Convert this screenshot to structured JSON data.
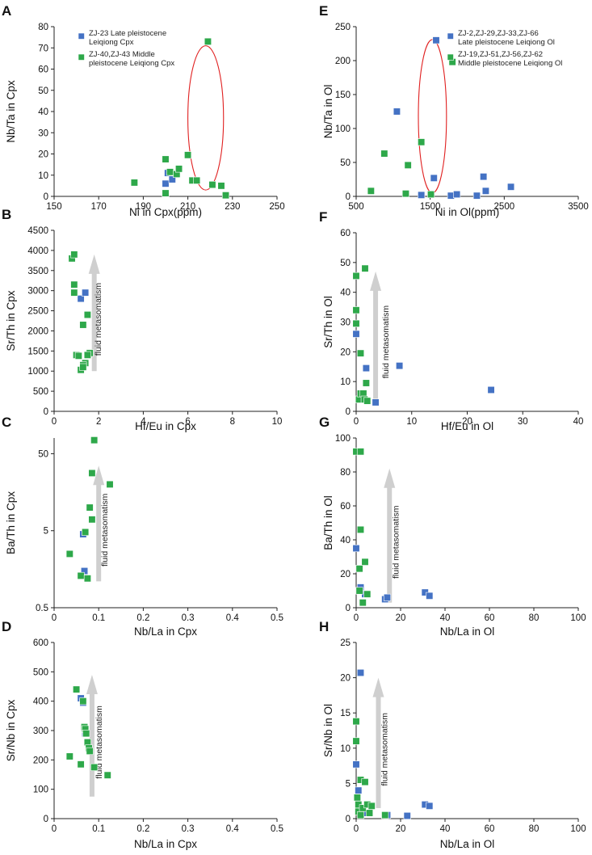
{
  "colors": {
    "late": "#4472C4",
    "middle": "#2EA84A",
    "point_stroke": "#ffffff",
    "ellipse": "#E02020",
    "arrow": "#CFCFCF",
    "axis": "#222222"
  },
  "chart_data": [
    {
      "id": "A",
      "letter": "A",
      "type": "scatter",
      "xlabel": "Ni in Cpx(ppm)",
      "ylabel": "Nb/Ta in Cpx",
      "xlim": [
        150,
        250
      ],
      "ylim": [
        0,
        80
      ],
      "yscale": "linear",
      "xticks": [
        150,
        170,
        190,
        210,
        230,
        250
      ],
      "yticks": [
        0,
        10,
        20,
        30,
        40,
        50,
        60,
        70,
        80
      ],
      "legend": [
        {
          "series": "late",
          "lines": [
            "ZJ-23 Late pleistocene",
            "Leiqiong Cpx"
          ]
        },
        {
          "series": "middle",
          "lines": [
            "ZJ-40,ZJ-43 Middle",
            "pleistocene Leiqiong Cpx"
          ]
        }
      ],
      "ellipse": {
        "cx": 218,
        "cy": 37,
        "rx": 8,
        "ry": 34
      },
      "series": [
        {
          "name": "late",
          "points": [
            [
              200,
              6
            ],
            [
              201,
              11
            ],
            [
              203,
              8
            ]
          ]
        },
        {
          "name": "middle",
          "points": [
            [
              186,
              6.5
            ],
            [
              200,
              17.5
            ],
            [
              200,
              1.5
            ],
            [
              202,
              11.5
            ],
            [
              205,
              10.5
            ],
            [
              206,
              13
            ],
            [
              210,
              19.5
            ],
            [
              212,
              7.5
            ],
            [
              214,
              7.5
            ],
            [
              219,
              73
            ],
            [
              221,
              5.5
            ],
            [
              225,
              5
            ],
            [
              227,
              0.5
            ]
          ]
        }
      ]
    },
    {
      "id": "E",
      "letter": "E",
      "type": "scatter",
      "xlabel": "Ni in Ol(ppm)",
      "ylabel": "Nb/Ta in Ol",
      "xlim": [
        500,
        3500
      ],
      "ylim": [
        0,
        250
      ],
      "yscale": "linear",
      "xticks": [
        500,
        1500,
        2500,
        3500
      ],
      "yticks": [
        0,
        50,
        100,
        150,
        200,
        250
      ],
      "legend": [
        {
          "series": "late",
          "lines": [
            "ZJ-2,ZJ-29,ZJ-33,ZJ-66",
            "Late pleistocene Leiqiong Ol"
          ]
        },
        {
          "series": "middle",
          "lines": [
            "ZJ-19,ZJ-51,ZJ-56,ZJ-62",
            "Middle pleistocene Leiqiong Ol"
          ]
        }
      ],
      "ellipse": {
        "cx": 1530,
        "cy": 118,
        "rx": 190,
        "ry": 113
      },
      "series": [
        {
          "name": "late",
          "points": [
            [
              1050,
              125
            ],
            [
              1380,
              2
            ],
            [
              1550,
              27
            ],
            [
              1580,
              230
            ],
            [
              1780,
              1
            ],
            [
              1860,
              3
            ],
            [
              2130,
              1
            ],
            [
              2220,
              29
            ],
            [
              2250,
              8
            ],
            [
              2590,
              14
            ]
          ]
        },
        {
          "name": "middle",
          "points": [
            [
              700,
              8
            ],
            [
              880,
              63
            ],
            [
              1170,
              4
            ],
            [
              1200,
              46
            ],
            [
              1380,
              80
            ],
            [
              1510,
              3
            ],
            [
              1800,
              198
            ]
          ]
        }
      ]
    },
    {
      "id": "B",
      "letter": "B",
      "type": "scatter",
      "xlabel": "Hf/Eu in Cpx",
      "ylabel": "Sr/Th in Cpx",
      "xlim": [
        0,
        10
      ],
      "ylim": [
        0,
        4500
      ],
      "yscale": "linear",
      "xticks": [
        0,
        2,
        4,
        6,
        8,
        10
      ],
      "yticks": [
        0,
        500,
        1000,
        1500,
        2000,
        2500,
        3000,
        3500,
        4000,
        4500
      ],
      "annotation": {
        "text": "fluid metasomatism",
        "x": 1.8,
        "y_from": 1000,
        "y_to": 3900,
        "label_x": 2.1
      },
      "series": [
        {
          "name": "late",
          "points": [
            [
              1.2,
              2800
            ],
            [
              1.4,
              2950
            ]
          ]
        },
        {
          "name": "middle",
          "points": [
            [
              0.8,
              3800
            ],
            [
              0.9,
              3900
            ],
            [
              0.9,
              3150
            ],
            [
              0.9,
              2950
            ],
            [
              1.3,
              2150
            ],
            [
              1.5,
              2400
            ],
            [
              1.0,
              1400
            ],
            [
              1.1,
              1380
            ],
            [
              1.6,
              1450
            ],
            [
              1.5,
              1400
            ],
            [
              1.4,
              1200
            ],
            [
              1.3,
              1150
            ],
            [
              1.2,
              1030
            ],
            [
              1.3,
              1100
            ]
          ]
        }
      ]
    },
    {
      "id": "F",
      "letter": "F",
      "type": "scatter",
      "xlabel": "Hf/Eu in Ol",
      "ylabel": "Sr/Th in Ol",
      "xlim": [
        0,
        40
      ],
      "ylim": [
        0,
        60
      ],
      "yscale": "linear",
      "xticks": [
        0,
        10,
        20,
        30,
        40
      ],
      "yticks": [
        0,
        10,
        20,
        30,
        40,
        50,
        60
      ],
      "annotation": {
        "text": "fluid metasomatism",
        "x": 3.5,
        "y_from": 4,
        "y_to": 47,
        "label_x": 5.8
      },
      "series": [
        {
          "name": "late",
          "points": [
            [
              0,
              26
            ],
            [
              1.8,
              14.5
            ],
            [
              3.5,
              3
            ],
            [
              7.8,
              15.3
            ],
            [
              24.3,
              7.2
            ]
          ]
        },
        {
          "name": "middle",
          "points": [
            [
              0,
              45.5
            ],
            [
              0,
              34
            ],
            [
              0,
              29.5
            ],
            [
              0.5,
              4
            ],
            [
              0.8,
              6
            ],
            [
              0.8,
              19.5
            ],
            [
              1.3,
              6
            ],
            [
              1.5,
              4
            ],
            [
              1.8,
              9.5
            ],
            [
              1.6,
              48
            ],
            [
              2.0,
              3.5
            ]
          ]
        }
      ]
    },
    {
      "id": "C",
      "letter": "C",
      "type": "scatter",
      "xlabel": "Nb/La in Cpx",
      "ylabel": "Ba/Th in Cpx",
      "xlim": [
        0,
        0.5
      ],
      "ylim": [
        0.5,
        80
      ],
      "yscale": "log",
      "xticks": [
        0,
        0.1,
        0.2,
        0.3,
        0.4,
        0.5
      ],
      "yticks": [
        0.5,
        5,
        50
      ],
      "annotation": {
        "text": "fluid metasomatism",
        "x": 0.1,
        "y_from": 1.1,
        "y_to": 35,
        "label_x": 0.12
      },
      "series": [
        {
          "name": "late",
          "points": [
            [
              0.065,
              4.5
            ],
            [
              0.068,
              1.5
            ]
          ]
        },
        {
          "name": "middle",
          "points": [
            [
              0.035,
              2.5
            ],
            [
              0.06,
              1.3
            ],
            [
              0.07,
              4.8
            ],
            [
              0.075,
              1.2
            ],
            [
              0.08,
              10
            ],
            [
              0.085,
              28
            ],
            [
              0.085,
              7
            ],
            [
              0.09,
              75
            ],
            [
              0.125,
              20
            ]
          ]
        }
      ]
    },
    {
      "id": "G",
      "letter": "G",
      "type": "scatter",
      "xlabel": "Nb/La in Ol",
      "ylabel": "Ba/Th in Ol",
      "xlim": [
        0,
        100
      ],
      "ylim": [
        0,
        100
      ],
      "yscale": "linear",
      "xticks": [
        0,
        20,
        40,
        60,
        80,
        100
      ],
      "yticks": [
        0,
        20,
        40,
        60,
        80,
        100
      ],
      "annotation": {
        "text": "fluid metasomatism",
        "x": 15,
        "y_from": 3,
        "y_to": 82,
        "label_x": 19
      },
      "series": [
        {
          "name": "late",
          "points": [
            [
              0,
              35
            ],
            [
              2,
              12
            ],
            [
              4,
              8
            ],
            [
              13,
              5
            ],
            [
              14,
              6
            ],
            [
              31,
              9
            ],
            [
              33,
              7
            ]
          ]
        },
        {
          "name": "middle",
          "points": [
            [
              0,
              92
            ],
            [
              2,
              92
            ],
            [
              2,
              46
            ],
            [
              1.5,
              23
            ],
            [
              1.5,
              10
            ],
            [
              3,
              3
            ],
            [
              4,
              27
            ],
            [
              5,
              8
            ]
          ]
        }
      ]
    },
    {
      "id": "D",
      "letter": "D",
      "type": "scatter",
      "xlabel": "Nb/La in Cpx",
      "ylabel": "Sr/Nb in Cpx",
      "xlim": [
        0,
        0.5
      ],
      "ylim": [
        0,
        600
      ],
      "yscale": "linear",
      "xticks": [
        0,
        0.1,
        0.2,
        0.3,
        0.4,
        0.5
      ],
      "yticks": [
        0,
        100,
        200,
        300,
        400,
        500,
        600
      ],
      "annotation": {
        "text": "fluid metasomatism",
        "x": 0.085,
        "y_from": 75,
        "y_to": 490,
        "label_x": 0.107
      },
      "series": [
        {
          "name": "late",
          "points": [
            [
              0.06,
              410
            ],
            [
              0.065,
              395
            ],
            [
              0.07,
              290
            ]
          ]
        },
        {
          "name": "middle",
          "points": [
            [
              0.035,
              212
            ],
            [
              0.05,
              440
            ],
            [
              0.06,
              185
            ],
            [
              0.065,
              400
            ],
            [
              0.068,
              312
            ],
            [
              0.07,
              305
            ],
            [
              0.072,
              290
            ],
            [
              0.075,
              260
            ],
            [
              0.078,
              240
            ],
            [
              0.08,
              230
            ],
            [
              0.09,
              175
            ],
            [
              0.12,
              148
            ]
          ]
        }
      ]
    },
    {
      "id": "H",
      "letter": "H",
      "type": "scatter",
      "xlabel": "Nb/La in Ol",
      "ylabel": "Sr/Nb in Ol",
      "xlim": [
        0,
        100
      ],
      "ylim": [
        0,
        25
      ],
      "yscale": "linear",
      "xticks": [
        0,
        20,
        40,
        60,
        80,
        100
      ],
      "yticks": [
        0,
        5,
        10,
        15,
        20,
        25
      ],
      "annotation": {
        "text": "fluid metasomatism",
        "x": 10,
        "y_from": 1.5,
        "y_to": 20,
        "label_x": 14
      },
      "series": [
        {
          "name": "late",
          "points": [
            [
              0,
              7.7
            ],
            [
              1,
              4
            ],
            [
              2,
              20.7
            ],
            [
              3,
              1.2
            ],
            [
              4,
              0.8
            ],
            [
              5,
              2
            ],
            [
              13,
              0.5
            ],
            [
              14,
              0.5
            ],
            [
              23,
              0.4
            ],
            [
              31,
              2
            ],
            [
              33,
              1.8
            ]
          ]
        },
        {
          "name": "middle",
          "points": [
            [
              0,
              13.8
            ],
            [
              0,
              11
            ],
            [
              0.5,
              3
            ],
            [
              1,
              2
            ],
            [
              1,
              1
            ],
            [
              2,
              5.5
            ],
            [
              2,
              0.5
            ],
            [
              3,
              1.5
            ],
            [
              4,
              5.2
            ],
            [
              5,
              2
            ],
            [
              6,
              0.8
            ],
            [
              7,
              1.8
            ],
            [
              13,
              0.5
            ]
          ]
        }
      ]
    }
  ]
}
